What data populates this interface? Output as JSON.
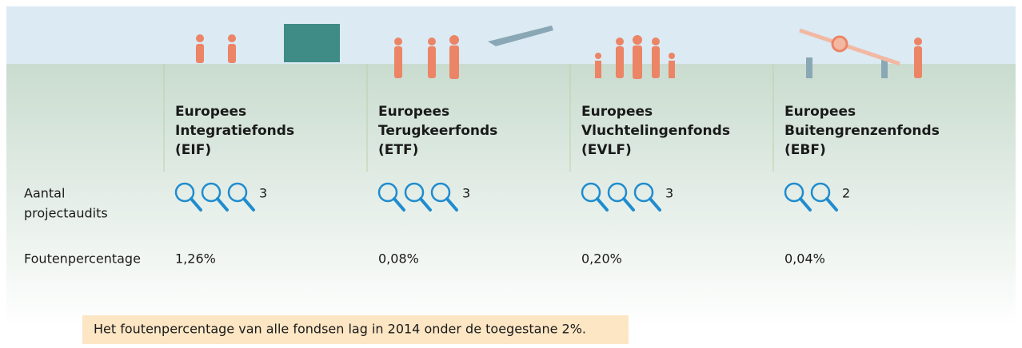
{
  "rows": {
    "audits": [
      "Aantal",
      "projectaudits"
    ],
    "error_rate": "Foutenpercentage"
  },
  "funds": [
    {
      "name": [
        "Europees",
        "Integratiefonds",
        "(EIF)"
      ],
      "audits": 3,
      "error_rate": "1,26%"
    },
    {
      "name": [
        "Europees",
        "Terugkeerfonds",
        "(ETF)"
      ],
      "audits": 3,
      "error_rate": "0,08%"
    },
    {
      "name": [
        "Europees",
        "Vluchtelingenfonds",
        "(EVLF)"
      ],
      "audits": 3,
      "error_rate": "0,20%"
    },
    {
      "name": [
        "Europees",
        "Buitengrenzenfonds",
        "(EBF)"
      ],
      "audits": 2,
      "error_rate": "0,04%"
    }
  ],
  "note": "Het foutenpercentage van alle fondsen lag in 2014 onder de toegestane 2%."
}
